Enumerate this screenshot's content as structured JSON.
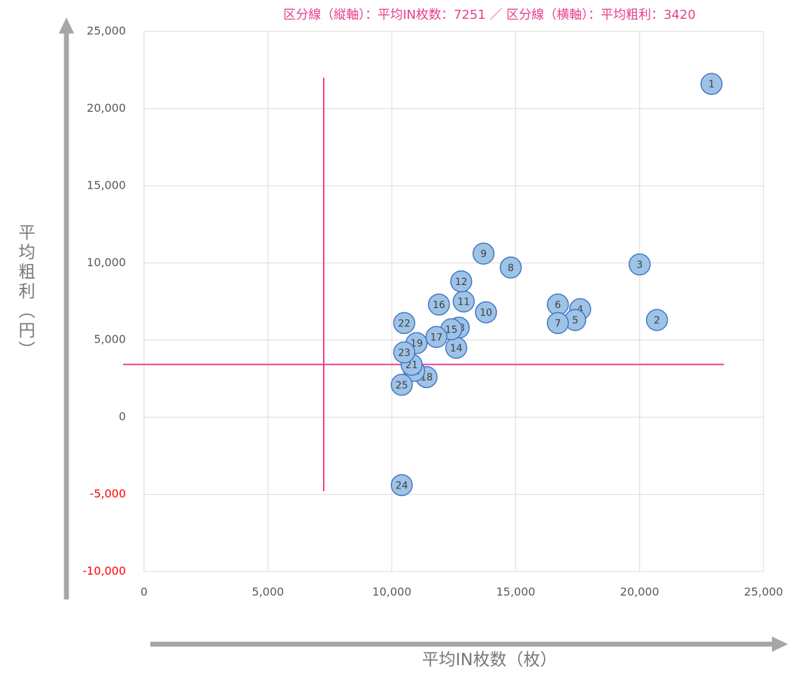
{
  "chart_data": {
    "type": "scatter",
    "annotation": "区分線（縦軸）：平均IN枚数：7251 ／ 区分線（横軸）：平均粗利：3420",
    "x_label": "平均IN枚数（枚）",
    "y_label": "平均粗利（円）",
    "x": [
      22900,
      20700,
      20000,
      17600,
      17400,
      16700,
      16700,
      14800,
      13700,
      13800,
      12900,
      12800,
      12700,
      12600,
      12400,
      11900,
      11800,
      11400,
      11000,
      10900,
      10800,
      10500,
      10500,
      10400,
      10400
    ],
    "values": [
      21600,
      6300,
      9900,
      7000,
      6300,
      7300,
      6100,
      9700,
      10600,
      6800,
      7500,
      8800,
      5800,
      4500,
      5700,
      7300,
      5200,
      2600,
      4800,
      3000,
      3400,
      6100,
      4200,
      -4400,
      2100
    ],
    "labels": [
      "1",
      "2",
      "3",
      "4",
      "5",
      "6",
      "7",
      "8",
      "9",
      "10",
      "11",
      "12",
      "13",
      "14",
      "15",
      "16",
      "17",
      "18",
      "19",
      "20",
      "21",
      "22",
      "23",
      "24",
      "25"
    ],
    "color": "#9dc3e6",
    "edge_color": "#4472c4",
    "xlim": [
      0,
      25000
    ],
    "ylim": [
      -10000,
      25000
    ],
    "xticks": [
      0,
      {
        "value": 5000,
        "label": "5,000"
      },
      {
        "value": 10000,
        "label": "10,000"
      },
      {
        "value": 15000,
        "label": "15,000"
      },
      {
        "value": 20000,
        "label": "20,000"
      },
      {
        "value": 25000,
        "label": "25,000"
      }
    ],
    "yticks": [
      {
        "value": -10000,
        "label": "-10,000"
      },
      {
        "value": -5000,
        "label": "-5,000"
      },
      0,
      {
        "value": 5000,
        "label": "5,000"
      },
      {
        "value": 10000,
        "label": "10,000"
      },
      {
        "value": 15000,
        "label": "15,000"
      },
      {
        "value": 20000,
        "label": "20,000"
      },
      {
        "value": 25000,
        "label": "25,000"
      }
    ],
    "negative_tick_color": "#ff0000",
    "grid": true,
    "divider_color": "#e83e8c",
    "vline": {
      "x": 7251,
      "y_range": [
        -4800,
        22000
      ]
    },
    "hline": {
      "y": 3420,
      "x_range": [
        -850,
        23400
      ]
    }
  }
}
